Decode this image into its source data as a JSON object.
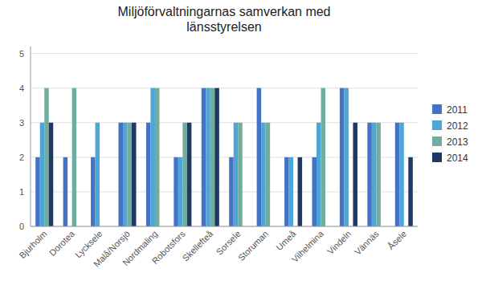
{
  "chart_data": {
    "type": "bar",
    "title": "Miljöförvaltningarnas samverkan med\nlänsstyrelsen",
    "categories": [
      "Bjurholm",
      "Dorotea",
      "Lycksele",
      "Malå/Norsjö",
      "Nordmaling",
      "Robotsfors",
      "Skellefteå",
      "Sorsele",
      "Storuman",
      "Umeå",
      "Vilhelmina",
      "Vindeln",
      "Vännäs",
      "Åsele"
    ],
    "series": [
      {
        "name": "2011",
        "color": "#4472c4",
        "values": [
          2,
          2,
          2,
          3,
          3,
          2,
          4,
          2,
          4,
          2,
          2,
          4,
          3,
          3
        ]
      },
      {
        "name": "2012",
        "color": "#4da6d5",
        "values": [
          3,
          0,
          3,
          3,
          4,
          2,
          4,
          3,
          3,
          2,
          3,
          4,
          3,
          3
        ]
      },
      {
        "name": "2013",
        "color": "#70ad9e",
        "values": [
          4,
          4,
          0,
          3,
          4,
          3,
          4,
          3,
          3,
          0,
          4,
          0,
          3,
          0
        ]
      },
      {
        "name": "2014",
        "color": "#1f3864",
        "values": [
          3,
          0,
          0,
          3,
          0,
          3,
          4,
          0,
          0,
          2,
          0,
          3,
          0,
          2
        ]
      }
    ],
    "ylim": [
      0,
      5.2
    ],
    "yticks": [
      0,
      1,
      2,
      3,
      4,
      5
    ],
    "grid": true,
    "legend": "right"
  }
}
